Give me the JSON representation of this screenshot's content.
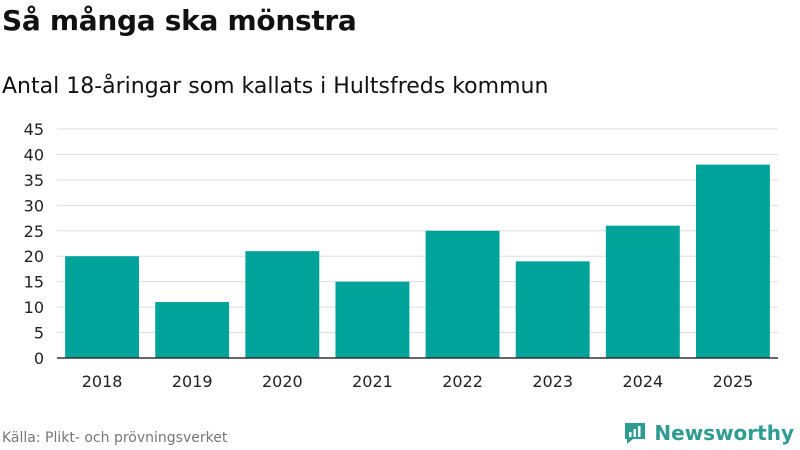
{
  "header": {
    "title": "Så många ska mönstra",
    "subtitle": "Antal 18-åringar som kallats i Hultsfreds kommun"
  },
  "footer": {
    "source": "Källa: Plikt- och prövningsverket",
    "brand": "Newsworthy"
  },
  "colors": {
    "bar": "#00a39a",
    "grid": "#dddddd",
    "axis": "#333333",
    "brand": "#2e9c91"
  },
  "chart_data": {
    "type": "bar",
    "title": "Så många ska mönstra",
    "subtitle": "Antal 18-åringar som kallats i Hultsfreds kommun",
    "categories": [
      "2018",
      "2019",
      "2020",
      "2021",
      "2022",
      "2023",
      "2024",
      "2025"
    ],
    "values": [
      20,
      11,
      21,
      15,
      25,
      19,
      26,
      38
    ],
    "ylim": [
      0,
      45
    ],
    "yticks": [
      0,
      5,
      10,
      15,
      20,
      25,
      30,
      35,
      40,
      45
    ],
    "grid": true,
    "legend": "none"
  }
}
